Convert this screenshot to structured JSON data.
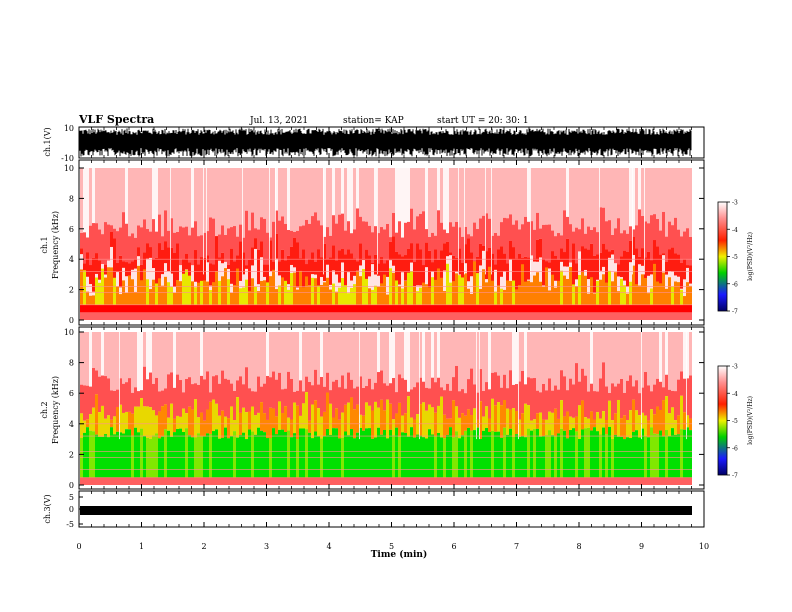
{
  "header": {
    "title": "VLF Spectra",
    "date": "Jul. 13, 2021",
    "station": "station= KAP",
    "start": "start UT = 20: 30: 1"
  },
  "panels": {
    "ch1_wave_ylabel": "ch.1(V)",
    "ch1_wave_ticks": [
      "10",
      "-10"
    ],
    "spec1_ylabel": "ch.1\nFrequency (kHz)",
    "spec2_ylabel": "ch.2\nFrequency (kHz)",
    "freq_ticks": [
      "0",
      "2",
      "4",
      "6",
      "8",
      "10"
    ],
    "ch3_wave_ylabel": "ch.3(V)",
    "ch3_wave_ticks": [
      "5",
      "0",
      "-5"
    ]
  },
  "colorbar": {
    "label": "log(PSD)(V²/Hz)",
    "ticks": [
      "-3",
      "-4",
      "-5",
      "-6",
      "-7"
    ],
    "colors": [
      "#1a1aff",
      "#00d000",
      "#f0f000",
      "#ff2000",
      "#ffffff"
    ]
  },
  "chart_data": {
    "type": "heatmap",
    "title": "VLF Spectra",
    "xlabel": "Time (min)",
    "x_ticks": [
      "0",
      "1",
      "2",
      "3",
      "4",
      "5",
      "6",
      "7",
      "8",
      "9",
      "10"
    ],
    "xlim": [
      0,
      10
    ],
    "spectrogram_ch1": {
      "ylabel": "Frequency (kHz)",
      "ylim": [
        0,
        10
      ],
      "band_kHz": {
        "strong_green_yellow": [
          1,
          3
        ],
        "red": [
          0.5,
          5.5
        ],
        "light_red": [
          5.5,
          10
        ]
      }
    },
    "spectrogram_ch2": {
      "ylabel": "Frequency (kHz)",
      "ylim": [
        0,
        10
      ],
      "band_kHz": {
        "green": [
          0.5,
          3
        ],
        "yellow_orange": [
          3,
          4.5
        ],
        "red": [
          4.5,
          6
        ],
        "light_red": [
          6,
          10
        ]
      }
    },
    "waveform_ch1": {
      "ylabel": "ch.1(V)",
      "ylim": [
        -10,
        10
      ]
    },
    "waveform_ch3": {
      "ylabel": "ch.3(V)",
      "ylim": [
        -5,
        5
      ]
    },
    "colorbar": {
      "label": "log(PSD)(V²/Hz)",
      "range": [
        -7,
        -3
      ]
    }
  }
}
